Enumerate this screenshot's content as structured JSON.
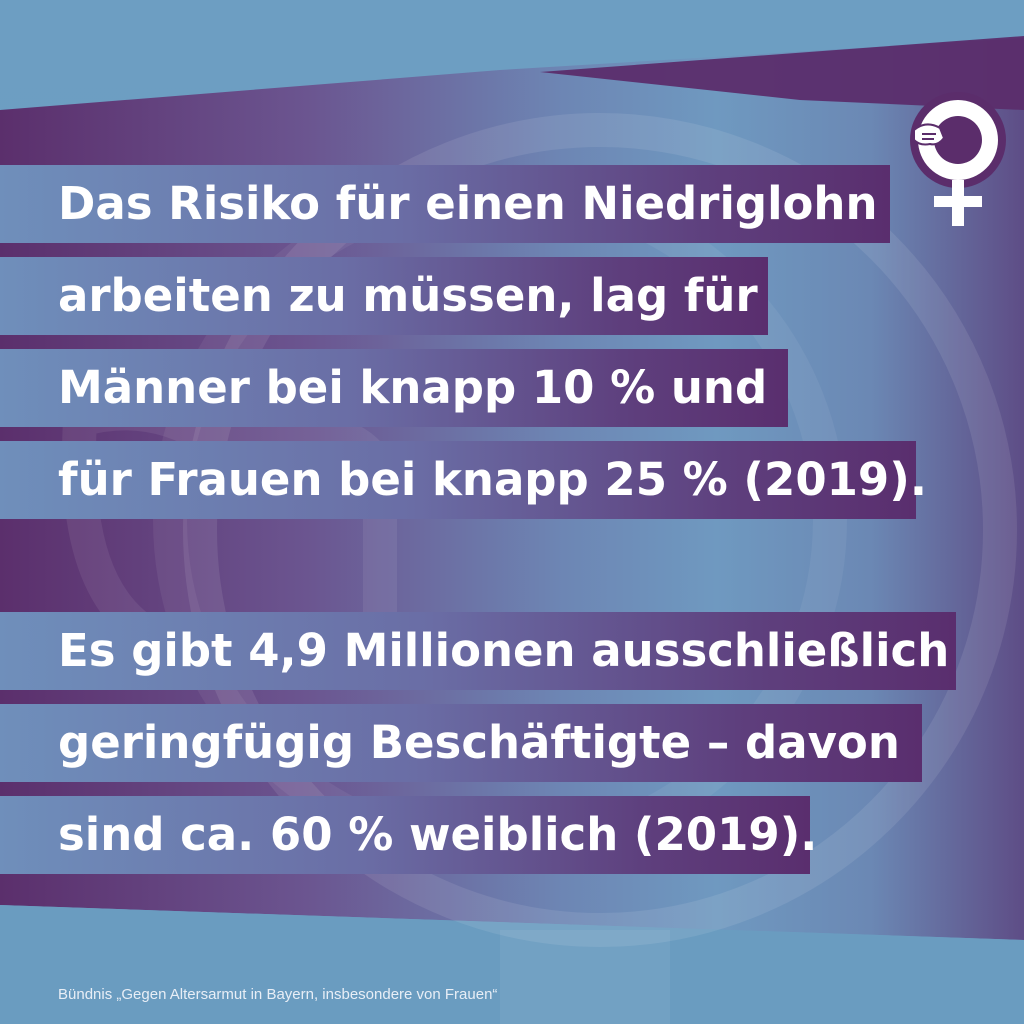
{
  "block1": {
    "lines": [
      "Das Risiko für einen Niedriglohn",
      "arbeiten zu müssen, lag für",
      "Männer bei knapp 10 % und",
      "für Frauen bei knapp 25 % (2019)."
    ]
  },
  "block2": {
    "lines": [
      "Es gibt 4,9 Millionen ausschließlich",
      "geringfügig Beschäftigte – davon",
      "sind ca. 60 % weiblich (2019)."
    ]
  },
  "footer": {
    "text": "Bündnis „Gegen Altersarmut in Bayern, insbesondere von Frauen“"
  },
  "logo": {
    "icon": "female-symbol-handshake-icon",
    "ring_color": "#5b2d6b",
    "fill_color": "#ffffff"
  },
  "colors": {
    "purple": "#5b2d6b",
    "blue": "#6a9cc0",
    "text": "#ffffff"
  }
}
